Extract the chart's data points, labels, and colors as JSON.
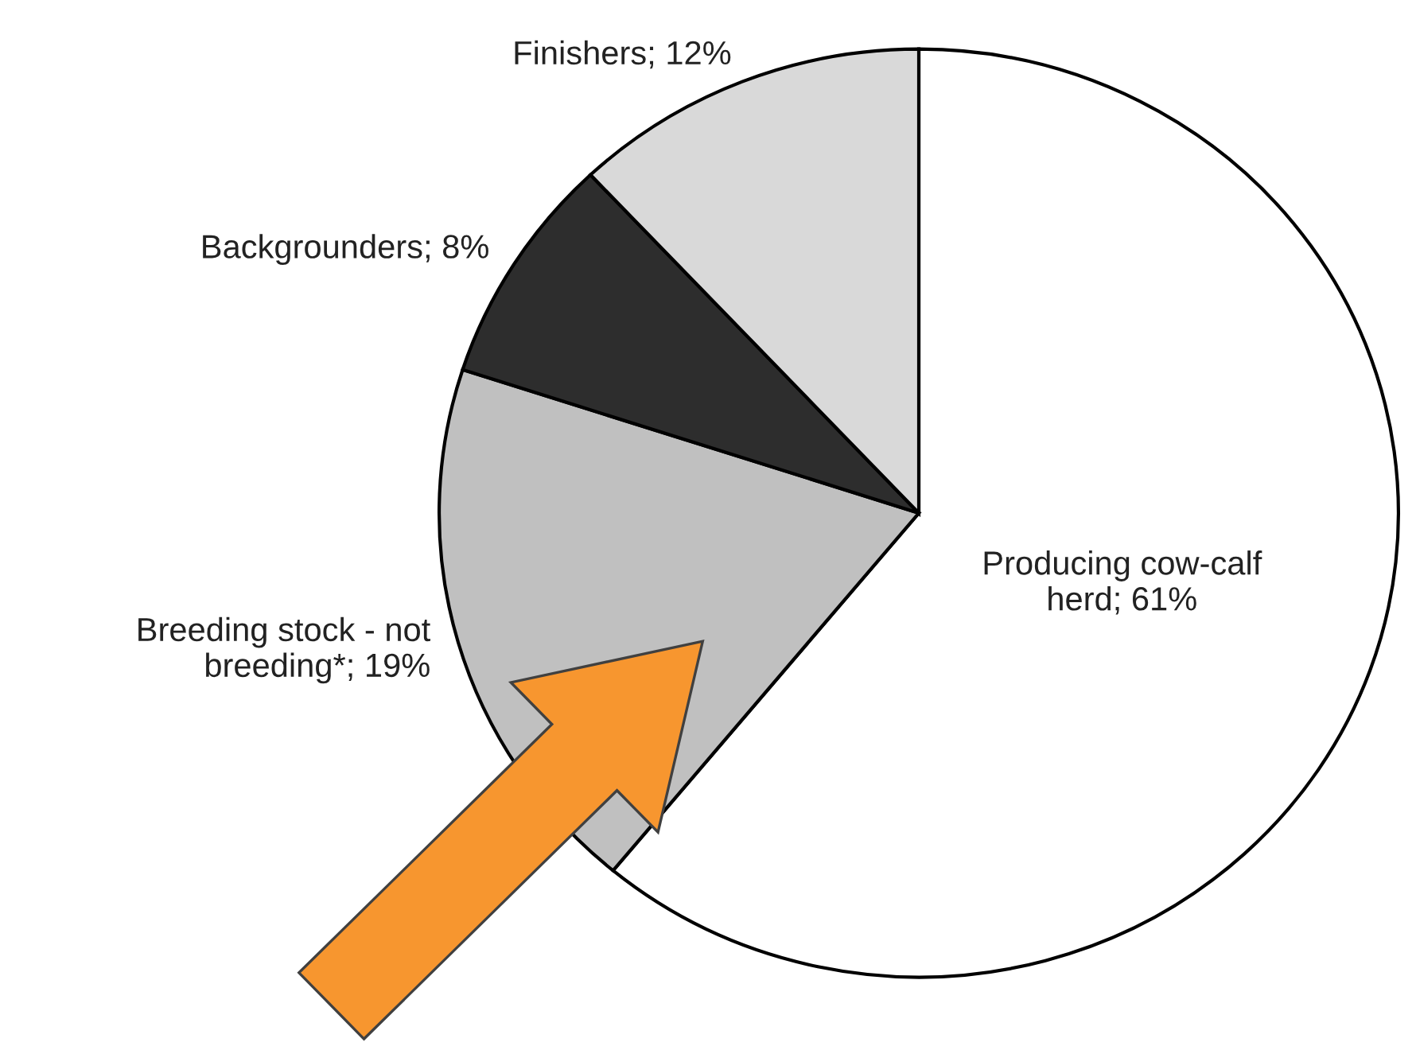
{
  "chart_data": {
    "type": "pie",
    "categories": [
      "Producing cow-calf herd",
      "Breeding stock - not breeding*",
      "Backgrounders",
      "Finishers"
    ],
    "values": [
      61,
      19,
      8,
      12
    ],
    "value_labels": [
      "61%",
      "19%",
      "8%",
      "12%"
    ],
    "colors": [
      "#ffffff",
      "#c0c0c0",
      "#2d2d2d",
      "#d9d9d9"
    ],
    "legend": false
  }
}
